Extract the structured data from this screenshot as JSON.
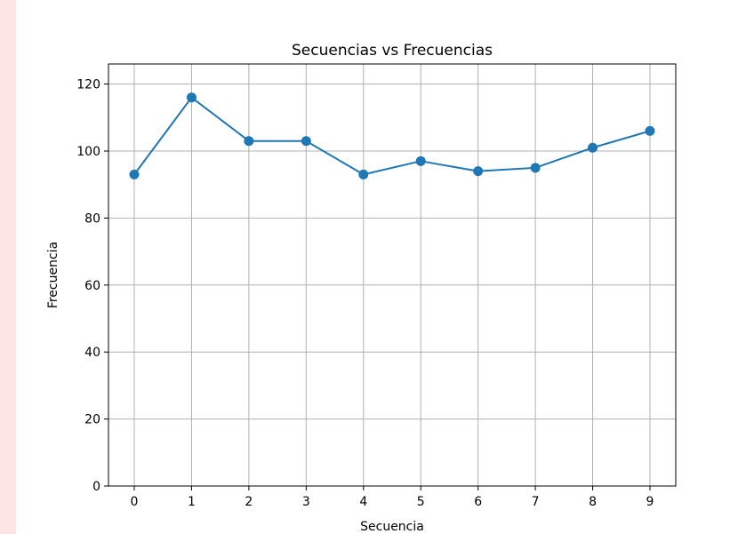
{
  "chart_data": {
    "type": "line",
    "title": "Secuencias vs Frecuencias",
    "xlabel": "Secuencia",
    "ylabel": "Frecuencia",
    "x": [
      0,
      1,
      2,
      3,
      4,
      5,
      6,
      7,
      8,
      9
    ],
    "series": [
      {
        "values": [
          93,
          116,
          103,
          103,
          93,
          97,
          94,
          95,
          101,
          106
        ],
        "color": "#1f77b4",
        "marker": "circle"
      }
    ],
    "xlim": [
      -0.45,
      9.45
    ],
    "ylim": [
      0,
      126
    ],
    "xticks": [
      0,
      1,
      2,
      3,
      4,
      5,
      6,
      7,
      8,
      9
    ],
    "yticks": [
      0,
      20,
      40,
      60,
      80,
      100,
      120
    ],
    "xtick_labels": [
      "0",
      "1",
      "2",
      "3",
      "4",
      "5",
      "6",
      "7",
      "8",
      "9"
    ],
    "ytick_labels": [
      "0",
      "20",
      "40",
      "60",
      "80",
      "100",
      "120"
    ],
    "grid": true,
    "grid_color": "#b0b0b0",
    "background_strip_color": "#fde5e3"
  }
}
